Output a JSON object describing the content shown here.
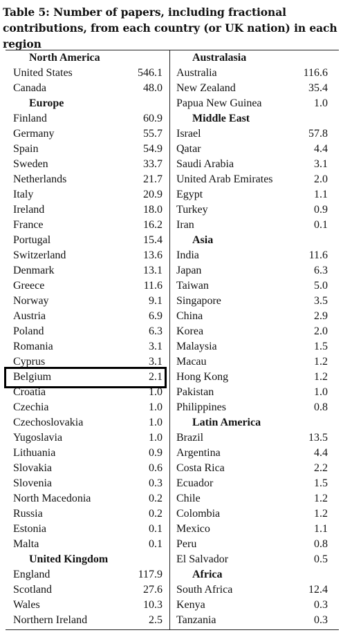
{
  "caption": "Table 5: Number of papers, including fractional contributions, from each country (or UK nation) in each region",
  "left_column": [
    {
      "type": "header",
      "name": "North America"
    },
    {
      "type": "row",
      "name": "United States",
      "value": "546.1"
    },
    {
      "type": "row",
      "name": "Canada",
      "value": "48.0"
    },
    {
      "type": "header",
      "name": "Europe"
    },
    {
      "type": "row",
      "name": "Finland",
      "value": "60.9"
    },
    {
      "type": "row",
      "name": "Germany",
      "value": "55.7"
    },
    {
      "type": "row",
      "name": "Spain",
      "value": "54.9"
    },
    {
      "type": "row",
      "name": "Sweden",
      "value": "33.7"
    },
    {
      "type": "row",
      "name": "Netherlands",
      "value": "21.7"
    },
    {
      "type": "row",
      "name": "Italy",
      "value": "20.9"
    },
    {
      "type": "row",
      "name": "Ireland",
      "value": "18.0"
    },
    {
      "type": "row",
      "name": "France",
      "value": "16.2"
    },
    {
      "type": "row",
      "name": "Portugal",
      "value": "15.4"
    },
    {
      "type": "row",
      "name": "Switzerland",
      "value": "13.6"
    },
    {
      "type": "row",
      "name": "Denmark",
      "value": "13.1"
    },
    {
      "type": "row",
      "name": "Greece",
      "value": "11.6"
    },
    {
      "type": "row",
      "name": "Norway",
      "value": "9.1"
    },
    {
      "type": "row",
      "name": "Austria",
      "value": "6.9"
    },
    {
      "type": "row",
      "name": "Poland",
      "value": "6.3"
    },
    {
      "type": "row",
      "name": "Romania",
      "value": "3.1"
    },
    {
      "type": "row",
      "name": "Cyprus",
      "value": "3.1"
    },
    {
      "type": "row",
      "name": "Belgium",
      "value": "2.1"
    },
    {
      "type": "row",
      "name": "Croatia",
      "value": "1.0"
    },
    {
      "type": "row",
      "name": "Czechia",
      "value": "1.0"
    },
    {
      "type": "row",
      "name": "Czechoslovakia",
      "value": "1.0"
    },
    {
      "type": "row",
      "name": "Yugoslavia",
      "value": "1.0"
    },
    {
      "type": "row",
      "name": "Lithuania",
      "value": "0.9"
    },
    {
      "type": "row",
      "name": "Slovakia",
      "value": "0.6"
    },
    {
      "type": "row",
      "name": "Slovenia",
      "value": "0.3"
    },
    {
      "type": "row",
      "name": "North Macedonia",
      "value": "0.2"
    },
    {
      "type": "row",
      "name": "Russia",
      "value": "0.2"
    },
    {
      "type": "row",
      "name": "Estonia",
      "value": "0.1"
    },
    {
      "type": "row",
      "name": "Malta",
      "value": "0.1"
    },
    {
      "type": "header",
      "name": "United Kingdom"
    },
    {
      "type": "row",
      "name": "England",
      "value": "117.9"
    },
    {
      "type": "row",
      "name": "Scotland",
      "value": "27.6"
    },
    {
      "type": "row",
      "name": "Wales",
      "value": "10.3"
    },
    {
      "type": "row",
      "name": "Northern Ireland",
      "value": "2.5"
    }
  ],
  "right_column": [
    {
      "type": "header",
      "name": "Australasia"
    },
    {
      "type": "row",
      "name": "Australia",
      "value": "116.6"
    },
    {
      "type": "row",
      "name": "New Zealand",
      "value": "35.4"
    },
    {
      "type": "row",
      "name": "Papua New Guinea",
      "value": "1.0"
    },
    {
      "type": "header",
      "name": "Middle East"
    },
    {
      "type": "row",
      "name": "Israel",
      "value": "57.8"
    },
    {
      "type": "row",
      "name": "Qatar",
      "value": "4.4"
    },
    {
      "type": "row",
      "name": "Saudi Arabia",
      "value": "3.1"
    },
    {
      "type": "row",
      "name": "United Arab Emirates",
      "value": "2.0"
    },
    {
      "type": "row",
      "name": "Egypt",
      "value": "1.1"
    },
    {
      "type": "row",
      "name": "Turkey",
      "value": "0.9"
    },
    {
      "type": "row",
      "name": "Iran",
      "value": "0.1"
    },
    {
      "type": "header",
      "name": "Asia"
    },
    {
      "type": "row",
      "name": "India",
      "value": "11.6"
    },
    {
      "type": "row",
      "name": "Japan",
      "value": "6.3"
    },
    {
      "type": "row",
      "name": "Taiwan",
      "value": "5.0"
    },
    {
      "type": "row",
      "name": "Singapore",
      "value": "3.5"
    },
    {
      "type": "row",
      "name": "China",
      "value": "2.9"
    },
    {
      "type": "row",
      "name": "Korea",
      "value": "2.0"
    },
    {
      "type": "row",
      "name": "Malaysia",
      "value": "1.5"
    },
    {
      "type": "row",
      "name": "Macau",
      "value": "1.2"
    },
    {
      "type": "row",
      "name": "Hong Kong",
      "value": "1.2"
    },
    {
      "type": "row",
      "name": "Pakistan",
      "value": "1.0"
    },
    {
      "type": "row",
      "name": "Philippines",
      "value": "0.8"
    },
    {
      "type": "header",
      "name": "Latin America"
    },
    {
      "type": "row",
      "name": "Brazil",
      "value": "13.5"
    },
    {
      "type": "row",
      "name": "Argentina",
      "value": "4.4"
    },
    {
      "type": "row",
      "name": "Costa Rica",
      "value": "2.2"
    },
    {
      "type": "row",
      "name": "Ecuador",
      "value": "1.5"
    },
    {
      "type": "row",
      "name": "Chile",
      "value": "1.2"
    },
    {
      "type": "row",
      "name": "Colombia",
      "value": "1.2"
    },
    {
      "type": "row",
      "name": "Mexico",
      "value": "1.1"
    },
    {
      "type": "row",
      "name": "Peru",
      "value": "0.8"
    },
    {
      "type": "row",
      "name": "El Salvador",
      "value": "0.5"
    },
    {
      "type": "header",
      "name": "Africa"
    },
    {
      "type": "row",
      "name": "South Africa",
      "value": "12.4"
    },
    {
      "type": "row",
      "name": "Kenya",
      "value": "0.3"
    },
    {
      "type": "row",
      "name": "Tanzania",
      "value": "0.3"
    }
  ],
  "highlighted_country": "Belgium"
}
